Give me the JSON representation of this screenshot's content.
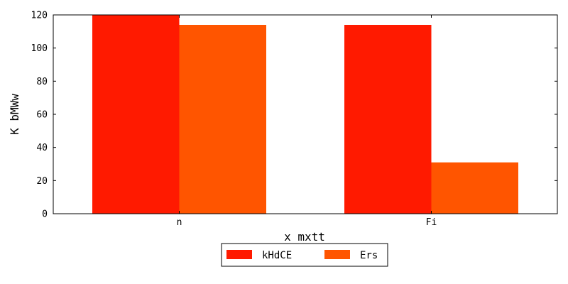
{
  "chart_data": {
    "type": "bar",
    "categories": [
      "n",
      "Fi"
    ],
    "series": [
      {
        "name": "kHdCE",
        "values": [
          120,
          114
        ],
        "color": "#ff1a00"
      },
      {
        "name": "Ers",
        "values": [
          114,
          31
        ],
        "color": "#ff5500"
      }
    ],
    "xlabel": "x mxtt",
    "ylabel": "K bMWw",
    "ylim": [
      0,
      120
    ],
    "yticks": [
      0,
      20,
      40,
      60,
      80,
      100,
      120
    ],
    "grid": false,
    "legend_position": "bottom-center"
  }
}
